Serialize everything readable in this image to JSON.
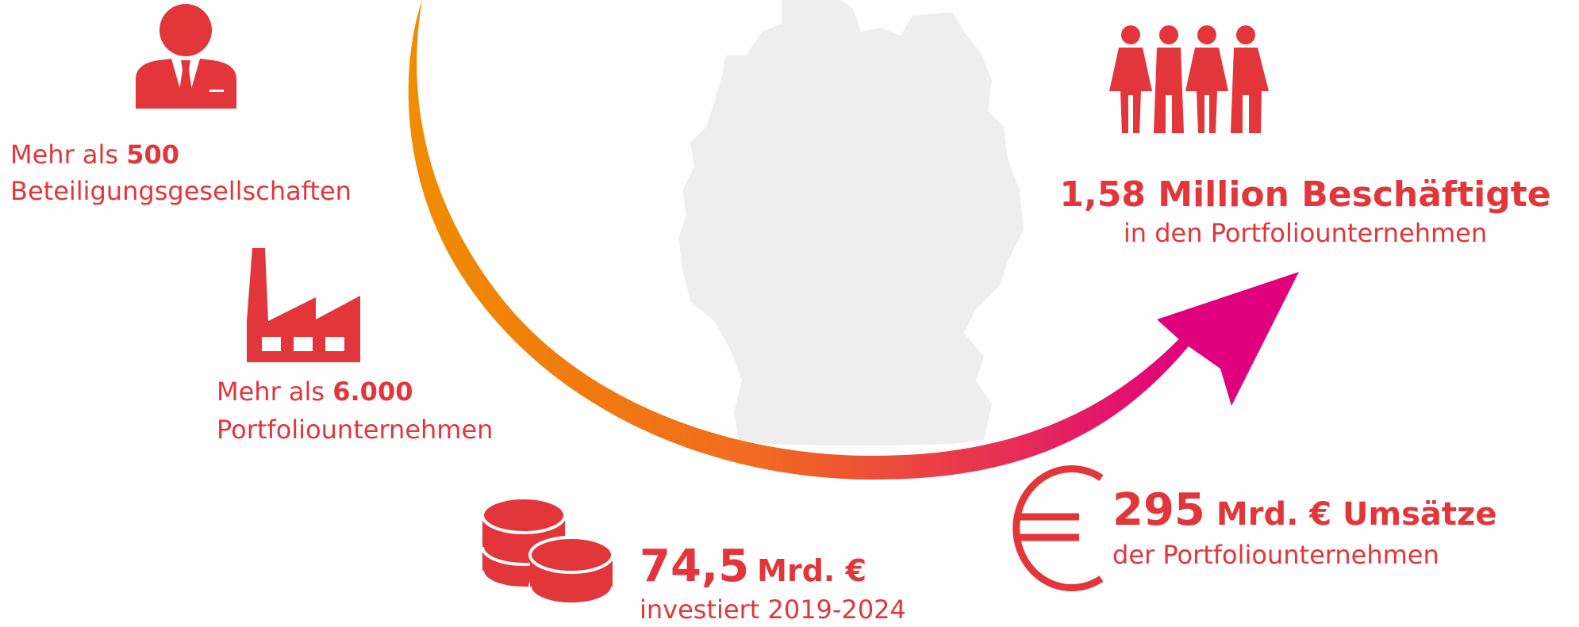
{
  "stats": [
    {
      "prefix": "Mehr als ",
      "number": "500",
      "description": "Beteiligungsgesellschaften"
    },
    {
      "prefix": "Mehr als ",
      "number": "6.000",
      "description": "Portfoliounternehmen"
    },
    {
      "headline": "1,58 Million Beschäftigte",
      "description": "in den Portfoliounternehmen"
    },
    {
      "number": "74,5",
      "unit": "Mrd. €",
      "description": "investiert 2019-2024"
    },
    {
      "number": "295",
      "unit": "Mrd. € Umsätze",
      "description": "der Portfoliounternehmen"
    }
  ]
}
